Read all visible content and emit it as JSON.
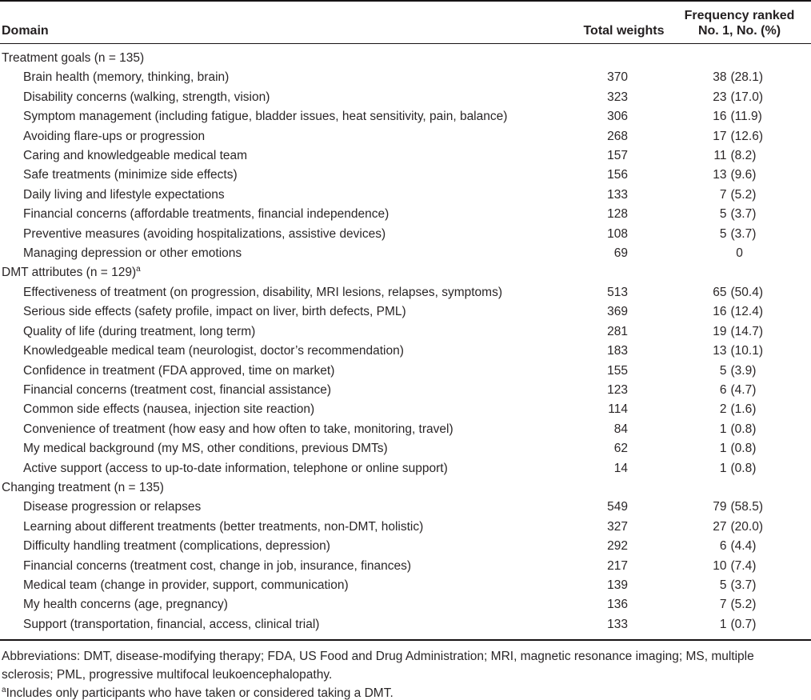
{
  "table": {
    "header": {
      "domain": "Domain",
      "total_weights": "Total weights",
      "frequency_line1": "Frequency ranked",
      "frequency_line2": "No. 1, No. (%)"
    },
    "sections": [
      {
        "title": "Treatment goals (n = 135)",
        "marker": "",
        "rows": [
          {
            "label": "Brain health (memory, thinking, brain)",
            "weight": "370",
            "freq": "38 (28.1)"
          },
          {
            "label": "Disability concerns (walking, strength, vision)",
            "weight": "323",
            "freq": "23 (17.0)"
          },
          {
            "label": "Symptom management (including fatigue, bladder issues, heat sensitivity, pain, balance)",
            "weight": "306",
            "freq": "16 (11.9)"
          },
          {
            "label": "Avoiding flare-ups or progression",
            "weight": "268",
            "freq": "17 (12.6)"
          },
          {
            "label": "Caring and knowledgeable medical team",
            "weight": "157",
            "freq": "11 (8.2)"
          },
          {
            "label": "Safe treatments (minimize side effects)",
            "weight": "156",
            "freq": "13 (9.6)"
          },
          {
            "label": "Daily living and lifestyle expectations",
            "weight": "133",
            "freq": "7 (5.2)"
          },
          {
            "label": "Financial concerns (affordable treatments, financial independence)",
            "weight": "128",
            "freq": "5 (3.7)"
          },
          {
            "label": "Preventive measures (avoiding hospitalizations, assistive devices)",
            "weight": "108",
            "freq": "5 (3.7)"
          },
          {
            "label": "Managing depression or other emotions",
            "weight": "69",
            "freq": "0"
          }
        ]
      },
      {
        "title": "DMT attributes (n = 129)",
        "marker": "a",
        "rows": [
          {
            "label": "Effectiveness of treatment (on progression, disability, MRI lesions, relapses, symptoms)",
            "weight": "513",
            "freq": "65 (50.4)"
          },
          {
            "label": "Serious side effects (safety profile, impact on liver, birth defects, PML)",
            "weight": "369",
            "freq": "16 (12.4)"
          },
          {
            "label": "Quality of life (during treatment, long term)",
            "weight": "281",
            "freq": "19 (14.7)"
          },
          {
            "label": "Knowledgeable medical team (neurologist, doctor’s recommendation)",
            "weight": "183",
            "freq": "13 (10.1)"
          },
          {
            "label": "Confidence in treatment (FDA approved, time on market)",
            "weight": "155",
            "freq": "5 (3.9)"
          },
          {
            "label": "Financial concerns (treatment cost, financial assistance)",
            "weight": "123",
            "freq": "6 (4.7)"
          },
          {
            "label": "Common side effects (nausea, injection site reaction)",
            "weight": "114",
            "freq": "2 (1.6)"
          },
          {
            "label": "Convenience of treatment (how easy and how often to take, monitoring, travel)",
            "weight": "84",
            "freq": "1 (0.8)"
          },
          {
            "label": "My medical background (my MS, other conditions, previous DMTs)",
            "weight": "62",
            "freq": "1 (0.8)"
          },
          {
            "label": "Active support (access to up-to-date information, telephone or online support)",
            "weight": "14",
            "freq": "1 (0.8)"
          }
        ]
      },
      {
        "title": "Changing treatment (n = 135)",
        "marker": "",
        "rows": [
          {
            "label": "Disease progression or relapses",
            "weight": "549",
            "freq": "79 (58.5)"
          },
          {
            "label": "Learning about different treatments (better treatments, non-DMT, holistic)",
            "weight": "327",
            "freq": "27 (20.0)"
          },
          {
            "label": "Difficulty handling treatment (complications, depression)",
            "weight": "292",
            "freq": "6 (4.4)"
          },
          {
            "label": "Financial concerns (treatment cost, change in job, insurance, finances)",
            "weight": "217",
            "freq": "10 (7.4)"
          },
          {
            "label": "Medical team (change in provider, support, communication)",
            "weight": "139",
            "freq": "5 (3.7)"
          },
          {
            "label": "My health concerns (age, pregnancy)",
            "weight": "136",
            "freq": "7 (5.2)"
          },
          {
            "label": "Support (transportation, financial, access, clinical trial)",
            "weight": "133",
            "freq": "1 (0.7)"
          }
        ]
      }
    ]
  },
  "footnotes": {
    "abbreviations": "Abbreviations: DMT, disease-modifying therapy; FDA, US Food and Drug Administration; MRI, magnetic resonance imaging; MS, multiple sclerosis; PML, progressive multifocal leukoencephalopathy.",
    "note_a_marker": "a",
    "note_a": "Includes only participants who have taken or considered taking a DMT."
  },
  "colors": {
    "text": "#2a2627",
    "rule": "#161314",
    "background": "#ffffff"
  }
}
